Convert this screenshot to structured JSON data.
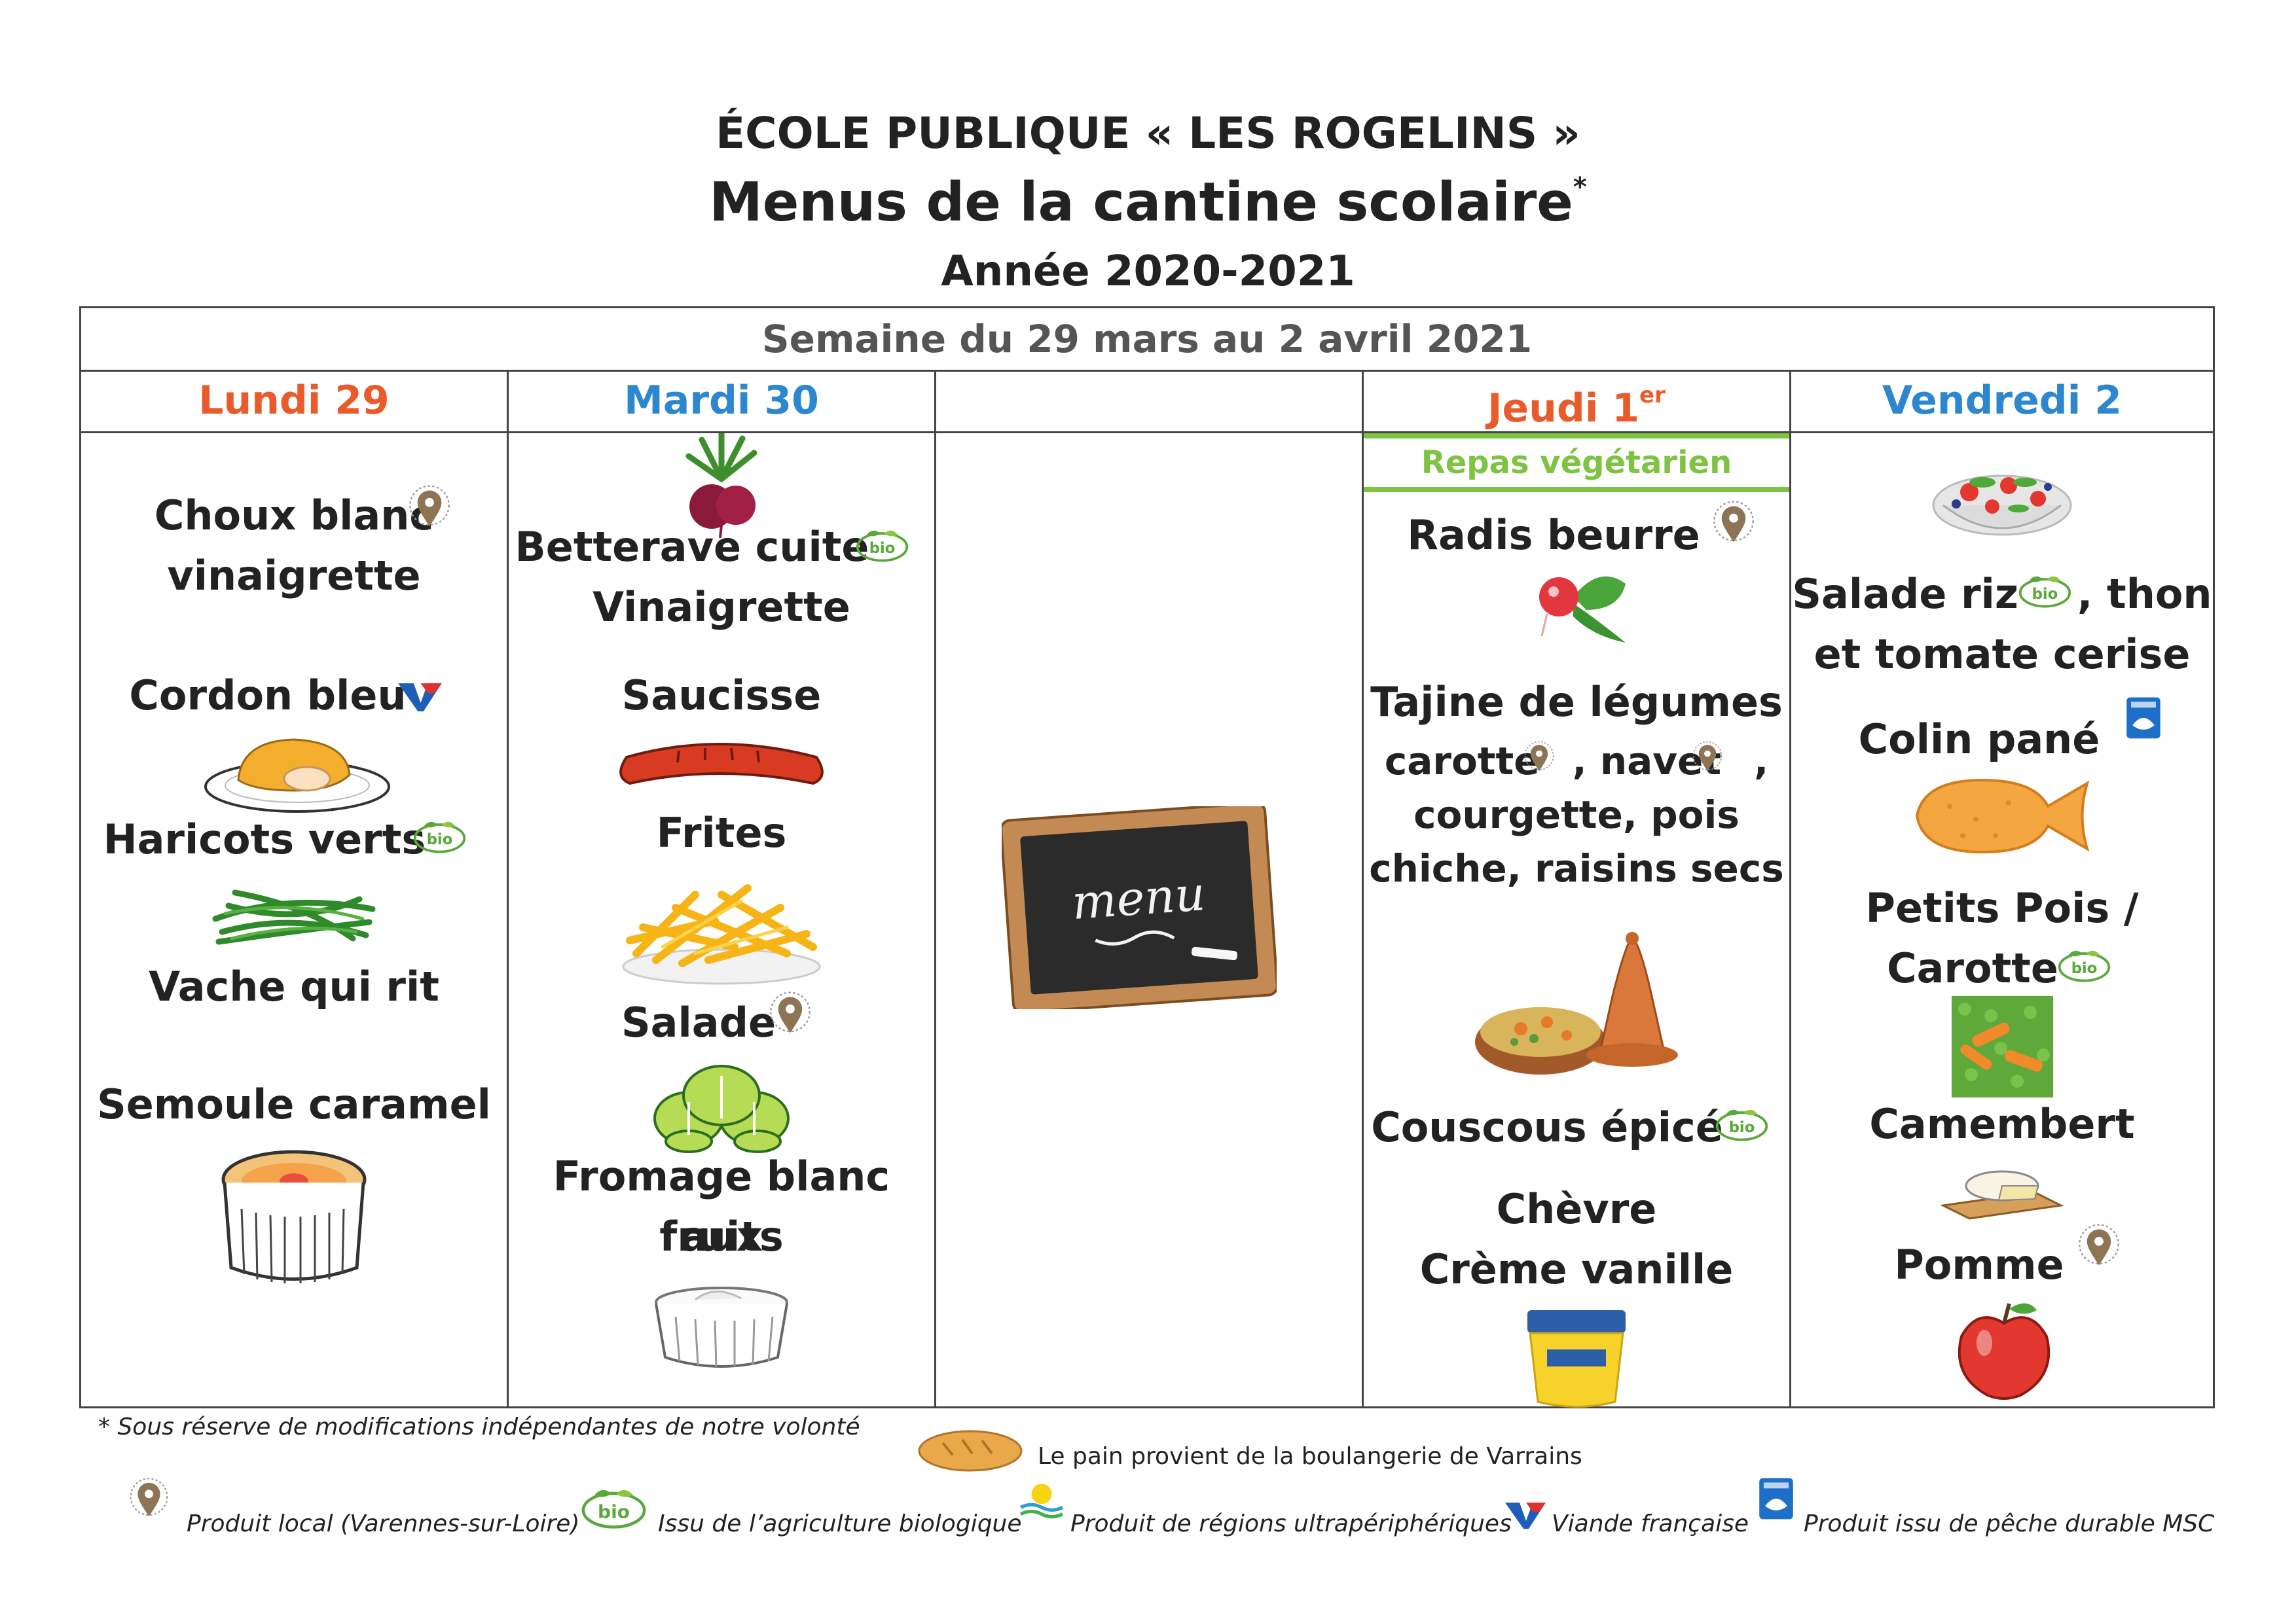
{
  "header": {
    "school": "ÉCOLE PUBLIQUE « LES ROGELINS »",
    "title": "Menus de la cantine scolaire",
    "title_mark": "*",
    "year": "Année 2020-2021"
  },
  "week": "Semaine du 29 mars au 2 avril 2021",
  "days": {
    "mon": "Lundi 29",
    "tue": "Mardi 30",
    "wed": "",
    "thu": "Jeudi 1",
    "thu_sup": "er",
    "fri": "Vendredi 2"
  },
  "colors": {
    "orange_day": "#ea5b2c",
    "blue_day": "#2d87cf",
    "vegetarian_green": "#7fc343"
  },
  "lundi": {
    "choux_1": "Choux blanc",
    "choux_2": "vinaigrette",
    "cordon": "Cordon bleu",
    "haricots": "Haricots verts",
    "vache": "Vache qui rit",
    "semoule": "Semoule caramel"
  },
  "mardi": {
    "betterave_1": "Betterave cuite",
    "betterave_2": "Vinaigrette",
    "saucisse": "Saucisse",
    "frites": "Frites",
    "salade": "Salade",
    "fromage_1": "Fromage blanc aux",
    "fromage_2": "fruits"
  },
  "mercredi": {
    "chalkboard_text": "menu"
  },
  "jeudi": {
    "repas": "Repas végétarien",
    "radis": "Radis beurre",
    "tajine_1": "Tajine de légumes",
    "tajine_2a": "carotte",
    "tajine_2b": ", navet",
    "tajine_2c": ",",
    "tajine_3": "courgette, pois",
    "tajine_4": "chiche, raisins secs",
    "couscous": "Couscous épicé",
    "chevre": "Chèvre",
    "creme": "Crème vanille"
  },
  "vendredi": {
    "salade_1a": "Salade riz",
    "salade_1b": ", thon",
    "salade_2": "et tomate cerise",
    "colin": "Colin pané",
    "petits_1": "Petits Pois /",
    "petits_2": "Carotte",
    "camembert": "Camembert",
    "pomme": "Pomme"
  },
  "footer": {
    "reserve": "* Sous réserve de modifications indépendantes de notre volonté",
    "pain": "Le pain provient de la boulangerie de Varrains",
    "legend_local": "Produit local (Varennes-sur-Loire)",
    "legend_bio": "Issu de l’agriculture biologique",
    "legend_rup": "Produit de régions ultrapériphériques",
    "legend_vf": "Viande française",
    "legend_msc": "Produit issu de pêche durable MSC"
  },
  "icons": {
    "local": "local-pin-icon",
    "bio": "bio-leaf-icon",
    "vf": "viande-francaise-icon",
    "msc": "msc-fish-icon",
    "rup": "sun-waves-icon"
  }
}
